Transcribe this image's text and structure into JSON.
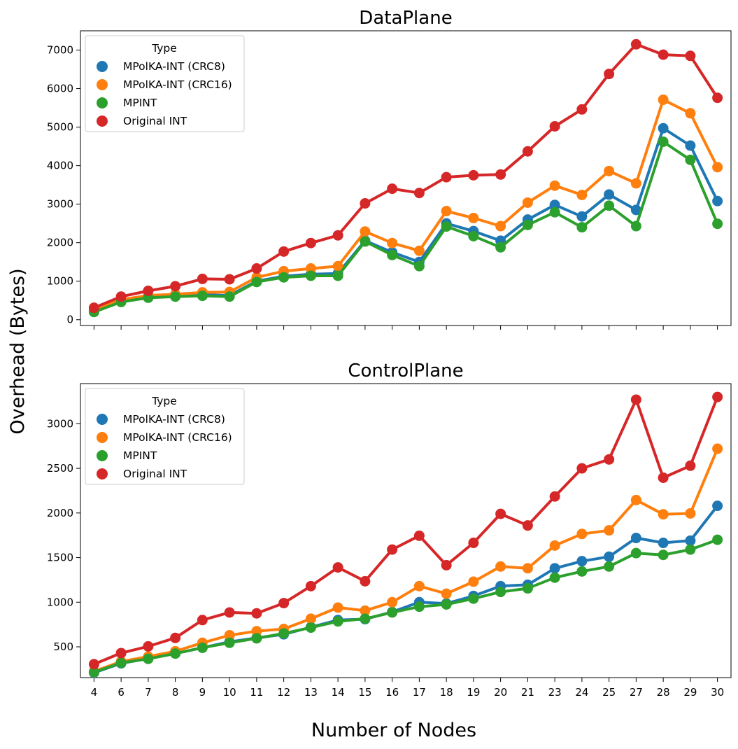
{
  "figure": {
    "ylabel": "Overhead (Bytes)",
    "xlabel": "Number of Nodes"
  },
  "chart_data": [
    {
      "type": "line",
      "title": "DataPlane",
      "categories": [
        "4",
        "6",
        "7",
        "8",
        "9",
        "10",
        "11",
        "12",
        "13",
        "14",
        "15",
        "16",
        "17",
        "18",
        "19",
        "20",
        "21",
        "23",
        "24",
        "25",
        "27",
        "28",
        "29",
        "30"
      ],
      "ylim": [
        -150,
        7500
      ],
      "yticks": [
        0,
        1000,
        2000,
        3000,
        4000,
        5000,
        6000,
        7000
      ],
      "show_xticklabels": false,
      "legend": {
        "title": "Type",
        "placement": "upper-left"
      },
      "series": [
        {
          "name": "MPolKA-INT (CRC8)",
          "color": "#1f77b4",
          "values": [
            210,
            480,
            580,
            620,
            650,
            630,
            1000,
            1130,
            1180,
            1200,
            2050,
            1750,
            1500,
            2500,
            2300,
            2050,
            2600,
            2980,
            2680,
            3250,
            2850,
            4970,
            4520,
            3080
          ]
        },
        {
          "name": "MPolKA-INT (CRC16)",
          "color": "#ff7f0e",
          "values": [
            250,
            520,
            630,
            660,
            710,
            720,
            1100,
            1260,
            1330,
            1390,
            2290,
            1990,
            1790,
            2820,
            2640,
            2430,
            3040,
            3480,
            3240,
            3860,
            3540,
            5710,
            5360,
            3960
          ]
        },
        {
          "name": "MPINT",
          "color": "#2ca02c",
          "values": [
            200,
            460,
            570,
            600,
            620,
            600,
            980,
            1100,
            1140,
            1140,
            2030,
            1680,
            1390,
            2420,
            2170,
            1880,
            2460,
            2790,
            2400,
            2960,
            2430,
            4620,
            4150,
            2490
          ]
        },
        {
          "name": "Original INT",
          "color": "#d62728",
          "values": [
            310,
            600,
            750,
            870,
            1060,
            1050,
            1330,
            1770,
            1990,
            2190,
            3020,
            3400,
            3290,
            3700,
            3750,
            3770,
            4370,
            5020,
            5460,
            6380,
            7150,
            6880,
            6850,
            5760
          ]
        }
      ]
    },
    {
      "type": "line",
      "title": "ControlPlane",
      "categories": [
        "4",
        "6",
        "7",
        "8",
        "9",
        "10",
        "11",
        "12",
        "13",
        "14",
        "15",
        "16",
        "17",
        "18",
        "19",
        "20",
        "21",
        "23",
        "24",
        "25",
        "27",
        "28",
        "29",
        "30"
      ],
      "ylim": [
        155,
        3450
      ],
      "yticks": [
        500,
        1000,
        1500,
        2000,
        2500,
        3000
      ],
      "show_xticklabels": true,
      "legend": {
        "title": "Type",
        "placement": "upper-left"
      },
      "series": [
        {
          "name": "MPolKA-INT (CRC8)",
          "color": "#1f77b4",
          "values": [
            210,
            315,
            370,
            425,
            490,
            555,
            600,
            640,
            720,
            800,
            810,
            890,
            1000,
            985,
            1070,
            1180,
            1195,
            1380,
            1460,
            1510,
            1720,
            1665,
            1690,
            2080
          ]
        },
        {
          "name": "MPolKA-INT (CRC16)",
          "color": "#ff7f0e",
          "values": [
            225,
            335,
            390,
            450,
            545,
            630,
            675,
            700,
            815,
            940,
            905,
            1000,
            1180,
            1095,
            1230,
            1400,
            1380,
            1635,
            1765,
            1805,
            2145,
            1985,
            1995,
            2720
          ]
        },
        {
          "name": "MPINT",
          "color": "#2ca02c",
          "values": [
            215,
            320,
            365,
            425,
            490,
            545,
            595,
            650,
            715,
            785,
            815,
            885,
            950,
            975,
            1040,
            1115,
            1155,
            1275,
            1345,
            1400,
            1550,
            1530,
            1590,
            1700
          ]
        },
        {
          "name": "Original INT",
          "color": "#d62728",
          "values": [
            305,
            430,
            505,
            600,
            800,
            885,
            875,
            990,
            1180,
            1390,
            1235,
            1590,
            1745,
            1415,
            1665,
            1990,
            1860,
            2185,
            2500,
            2600,
            3270,
            2395,
            2530,
            3300
          ]
        }
      ]
    }
  ]
}
